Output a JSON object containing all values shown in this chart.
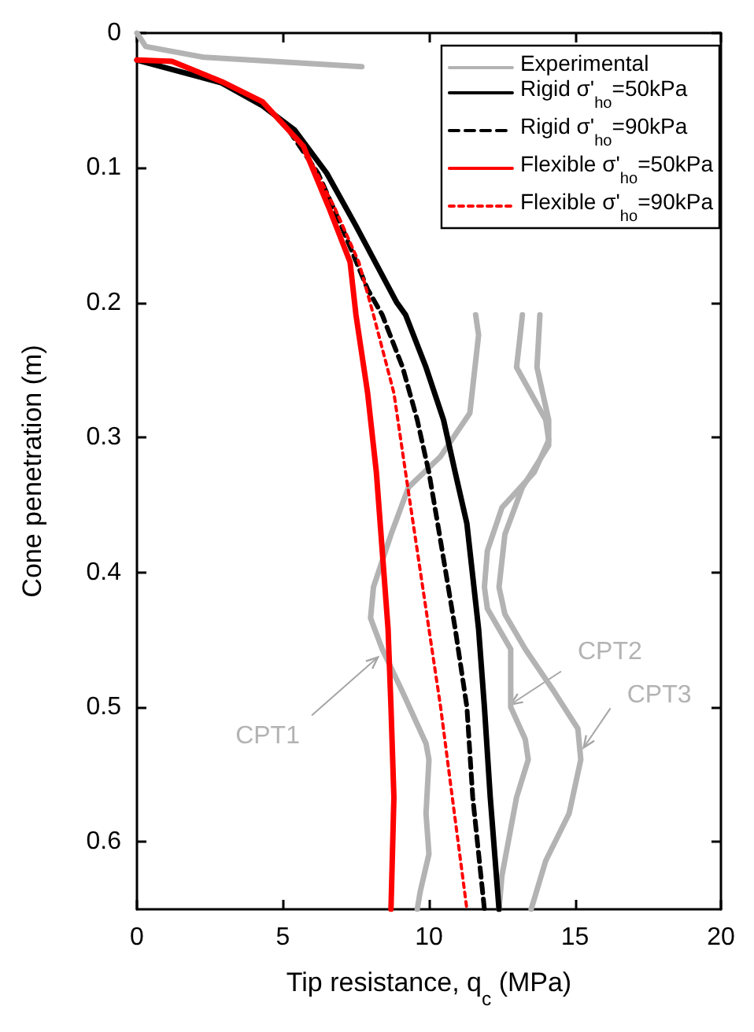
{
  "chart_data": {
    "type": "line",
    "xlabel": "Tip resistance, q$_{c}$ (MPa)",
    "ylabel": "Cone penetration (m)",
    "xlim": [
      0,
      20
    ],
    "xticks": [
      0,
      5,
      10,
      15,
      20
    ],
    "ylim": [
      0.65,
      0
    ],
    "yticks": [
      0,
      0.1,
      0.2,
      0.3,
      0.4,
      0.5,
      0.6
    ],
    "grid": false,
    "legend": "top right",
    "marker": "none",
    "series": [
      {
        "name": "Experimental",
        "color": "#b3b3b3",
        "line_style": "solid",
        "x": [
          0,
          0.3,
          2.3,
          7.7,
          null,
          11.6,
          11.7,
          11.4,
          10.4,
          9.3,
          8.7,
          8.1,
          8.0,
          8.4,
          9.1,
          9.9,
          10.0,
          9.9,
          10.0,
          9.7,
          9.6
        ],
        "values": [
          0,
          0.01,
          0.018,
          0.025,
          null,
          0.209,
          0.224,
          0.282,
          0.314,
          0.337,
          0.372,
          0.411,
          0.434,
          0.457,
          0.489,
          0.527,
          0.539,
          0.579,
          0.609,
          0.637,
          0.65
        ]
      },
      {
        "color": "#b3b3b3",
        "line_style": "solid",
        "x": [
          13.2,
          13.1,
          13.0,
          14.0,
          14.1,
          13.6,
          12.5,
          12.0,
          11.9,
          12.0,
          12.8,
          12.8,
          13.3,
          13.4,
          13.0,
          12.7,
          12.5,
          12.4
        ],
        "values": [
          0.209,
          0.229,
          0.248,
          0.287,
          0.302,
          0.326,
          0.352,
          0.384,
          0.411,
          0.427,
          0.457,
          0.5,
          0.524,
          0.539,
          0.567,
          0.602,
          0.625,
          0.65
        ]
      },
      {
        "color": "#b3b3b3",
        "line_style": "solid",
        "x": [
          13.8,
          13.7,
          14.1,
          14.1,
          13.2,
          12.6,
          12.4,
          12.6,
          13.3,
          14.3,
          15.1,
          15.2,
          14.8,
          14.0,
          13.5
        ],
        "values": [
          0.209,
          0.248,
          0.287,
          0.306,
          0.337,
          0.372,
          0.411,
          0.431,
          0.457,
          0.489,
          0.516,
          0.539,
          0.579,
          0.614,
          0.65
        ]
      },
      {
        "name": "Rigid σ'$_{ho}$=50kPa",
        "color": "#000000",
        "line_style": "solid",
        "x": [
          0,
          2.9,
          4.3,
          5.4,
          6.5,
          7.5,
          8.9,
          9.2,
          9.9,
          10.5,
          10.9,
          11.3,
          11.5,
          11.7,
          11.9,
          12.1,
          12.4
        ],
        "values": [
          0.02,
          0.037,
          0.054,
          0.072,
          0.104,
          0.143,
          0.2,
          0.209,
          0.248,
          0.287,
          0.326,
          0.364,
          0.403,
          0.442,
          0.5,
          0.567,
          0.65
        ]
      },
      {
        "name": "Rigid σ'$_{ho}$=90kPa",
        "color": "#000000",
        "line_style": "dashed",
        "x": [
          0,
          1.2,
          2.9,
          4.3,
          5.2,
          6.2,
          7.0,
          7.9,
          8.4,
          9.1,
          9.6,
          10.0,
          10.3,
          10.6,
          10.9,
          11.3,
          11.5,
          11.9
        ],
        "values": [
          0.02,
          0.021,
          0.036,
          0.052,
          0.072,
          0.104,
          0.143,
          0.19,
          0.209,
          0.248,
          0.287,
          0.326,
          0.364,
          0.403,
          0.442,
          0.5,
          0.567,
          0.65
        ]
      },
      {
        "name": "Flexible σ'$_{ho}$=50kPa",
        "color": "#ff0000",
        "line_style": "solid",
        "x": [
          0,
          1.2,
          2.9,
          4.3,
          5.7,
          6.6,
          7.3,
          7.5,
          7.9,
          8.2,
          8.4,
          8.6,
          8.7,
          8.8,
          8.7
        ],
        "values": [
          0.02,
          0.021,
          0.036,
          0.051,
          0.084,
          0.131,
          0.17,
          0.209,
          0.267,
          0.326,
          0.384,
          0.442,
          0.5,
          0.567,
          0.65
        ]
      },
      {
        "name": "Flexible σ'$_{ho}$=90kPa",
        "color": "#ff0000",
        "line_style": "dotted",
        "x": [
          0,
          1.2,
          2.9,
          4.3,
          5.7,
          6.8,
          7.6,
          8.1,
          8.8,
          9.2,
          9.6,
          10.0,
          10.4,
          10.8,
          11.3
        ],
        "values": [
          0.02,
          0.021,
          0.036,
          0.051,
          0.084,
          0.131,
          0.17,
          0.209,
          0.267,
          0.326,
          0.384,
          0.442,
          0.5,
          0.567,
          0.65
        ]
      }
    ],
    "annotations": [
      {
        "text": "CPT1",
        "x": 8.25,
        "y": 0.463
      },
      {
        "text": "CPT2",
        "x": 12.8,
        "y": 0.498
      },
      {
        "text": "CPT3",
        "x": 15.3,
        "y": 0.53
      }
    ]
  }
}
